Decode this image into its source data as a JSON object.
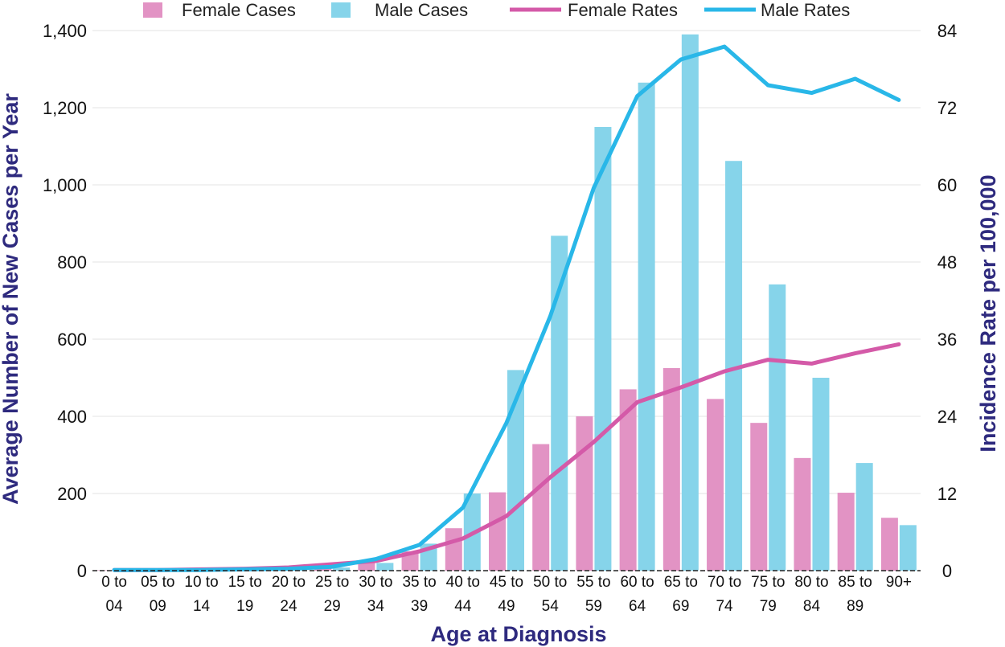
{
  "chart_data": {
    "type": "bar",
    "xlabel": "Age at Diagnosis",
    "ylabel": "Average Number of New Cases per Year",
    "y2label": "Incidence Rate per 100,000",
    "ylim": [
      0,
      1400
    ],
    "y2lim": [
      0,
      84
    ],
    "yticks": [
      "0",
      "200",
      "400",
      "600",
      "800",
      "1,000",
      "1,200",
      "1,400"
    ],
    "y2ticks": [
      "0",
      "12",
      "24",
      "36",
      "48",
      "60",
      "72",
      "84"
    ],
    "grid": true,
    "legend_position": "top",
    "categories": [
      [
        "0 to",
        "04"
      ],
      [
        "05 to",
        "09"
      ],
      [
        "10 to",
        "14"
      ],
      [
        "15 to",
        "19"
      ],
      [
        "20 to",
        "24"
      ],
      [
        "25 to",
        "29"
      ],
      [
        "30 to",
        "34"
      ],
      [
        "35 to",
        "39"
      ],
      [
        "40 to",
        "44"
      ],
      [
        "45 to",
        "49"
      ],
      [
        "50 to",
        "54"
      ],
      [
        "55 to",
        "59"
      ],
      [
        "60 to",
        "64"
      ],
      [
        "65 to",
        "69"
      ],
      [
        "70 to",
        "74"
      ],
      [
        "75 to",
        "79"
      ],
      [
        "80 to",
        "84"
      ],
      [
        "85 to",
        "89"
      ],
      [
        "90+",
        ""
      ]
    ],
    "bar_series": [
      {
        "name": "Female Cases",
        "color": "#e293c4",
        "values": [
          1,
          1,
          2,
          3,
          6,
          10,
          20,
          50,
          110,
          203,
          328,
          400,
          470,
          525,
          445,
          383,
          292,
          202,
          137
        ]
      },
      {
        "name": "Male Cases",
        "color": "#86d4ea",
        "values": [
          1,
          1,
          2,
          3,
          5,
          8,
          20,
          70,
          200,
          520,
          868,
          1150,
          1265,
          1390,
          1062,
          742,
          500,
          279,
          118
        ]
      }
    ],
    "line_series": [
      {
        "name": "Female Rates",
        "color": "#d45aa8",
        "values": [
          0.1,
          0.1,
          0.2,
          0.3,
          0.5,
          1.0,
          1.5,
          3.0,
          5.0,
          8.5,
          14.5,
          20.0,
          26.2,
          28.5,
          31.0,
          32.8,
          32.2,
          33.8,
          35.2
        ]
      },
      {
        "name": "Male Rates",
        "color": "#29b7e8",
        "values": [
          0.1,
          0.1,
          0.1,
          0.2,
          0.3,
          0.6,
          1.8,
          4.0,
          9.8,
          23.0,
          39.5,
          59.5,
          73.8,
          79.5,
          81.5,
          75.5,
          74.3,
          76.5,
          73.2
        ]
      }
    ]
  }
}
